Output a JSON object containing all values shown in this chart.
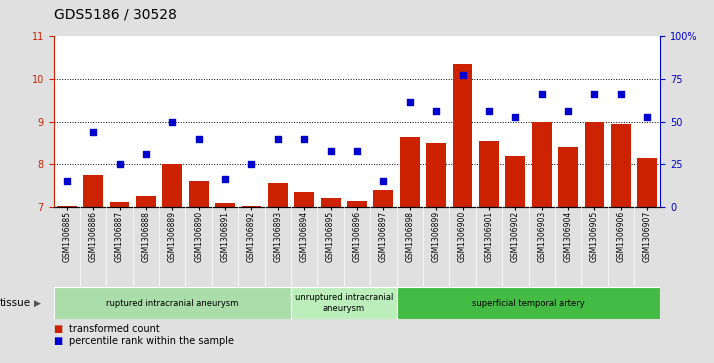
{
  "title": "GDS5186 / 30528",
  "samples": [
    "GSM1306885",
    "GSM1306886",
    "GSM1306887",
    "GSM1306888",
    "GSM1306889",
    "GSM1306890",
    "GSM1306891",
    "GSM1306892",
    "GSM1306893",
    "GSM1306894",
    "GSM1306895",
    "GSM1306896",
    "GSM1306897",
    "GSM1306898",
    "GSM1306899",
    "GSM1306900",
    "GSM1306901",
    "GSM1306902",
    "GSM1306903",
    "GSM1306904",
    "GSM1306905",
    "GSM1306906",
    "GSM1306907"
  ],
  "bar_values": [
    7.02,
    7.75,
    7.12,
    7.25,
    8.0,
    7.6,
    7.1,
    7.02,
    7.55,
    7.35,
    7.2,
    7.15,
    7.4,
    8.65,
    8.5,
    10.35,
    8.55,
    8.2,
    9.0,
    8.4,
    9.0,
    8.95,
    8.15
  ],
  "scatter_values": [
    15.0,
    43.75,
    25.0,
    31.25,
    49.75,
    40.0,
    16.25,
    25.0,
    40.0,
    40.0,
    32.5,
    32.5,
    15.0,
    61.25,
    56.25,
    77.5,
    56.25,
    52.5,
    66.25,
    56.25,
    66.25,
    66.25,
    52.5
  ],
  "ylim_left": [
    7,
    11
  ],
  "ylim_right": [
    0,
    100
  ],
  "yticks_left": [
    7,
    8,
    9,
    10,
    11
  ],
  "yticks_right": [
    0,
    25,
    50,
    75,
    100
  ],
  "ytick_labels_right": [
    "0",
    "25",
    "50",
    "75",
    "100%"
  ],
  "bar_color": "#cc2200",
  "scatter_color": "#0000cc",
  "tissue_groups": [
    {
      "label": "ruptured intracranial aneurysm",
      "start": 0,
      "end": 9,
      "color": "#aaddaa"
    },
    {
      "label": "unruptured intracranial\naneurysm",
      "start": 9,
      "end": 13,
      "color": "#bbeebb"
    },
    {
      "label": "superficial temporal artery",
      "start": 13,
      "end": 23,
      "color": "#44bb44"
    }
  ],
  "tissue_label": "tissue",
  "legend_bar_label": "transformed count",
  "legend_scatter_label": "percentile rank within the sample",
  "background_color": "#e0e0e0",
  "plot_bg_color": "#ffffff",
  "xtick_bg_color": "#cccccc",
  "title_fontsize": 10,
  "tick_fontsize": 7,
  "sample_fontsize": 5.5
}
